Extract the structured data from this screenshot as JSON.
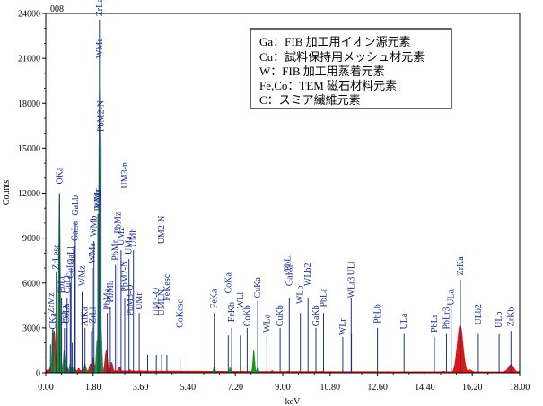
{
  "chart_data": {
    "type": "area",
    "title": "",
    "sample_label": "008",
    "xlabel": "keV",
    "ylabel": "Counts",
    "xlim": [
      0,
      18
    ],
    "ylim": [
      0,
      24000
    ],
    "xticks": [
      "0.00",
      "1.80",
      "3.60",
      "5.40",
      "7.20",
      "9.00",
      "10.80",
      "12.60",
      "14.40",
      "16.20",
      "18.00"
    ],
    "yticks": [
      "0",
      "3000",
      "6000",
      "9000",
      "12000",
      "15000",
      "18000",
      "21000",
      "24000"
    ],
    "grid": false,
    "annotation": [
      "Ga：FIB 加工用イオン源元素",
      "Cu：試料保持用メッシュ材元素",
      "W：FIB 加工用蒸着元素",
      "Fe,Co：TEM 磁石材料元素",
      "C：スミア繊維元素"
    ],
    "colors": {
      "spectrum_green": "#1a9a1a",
      "spectrum_red": "#e01515",
      "marker_blue": "#1f2f8a"
    },
    "series": [
      {
        "color": "green",
        "points": [
          [
            0.27,
            3000
          ],
          [
            0.52,
            12000
          ],
          [
            0.7,
            1500
          ],
          [
            0.93,
            600
          ],
          [
            1.01,
            400
          ],
          [
            1.1,
            500
          ],
          [
            1.49,
            600
          ],
          [
            1.78,
            700
          ],
          [
            1.95,
            2200
          ],
          [
            2.04,
            19000
          ],
          [
            2.1,
            3000
          ],
          [
            6.4,
            400
          ],
          [
            7.0,
            350
          ],
          [
            7.9,
            1500
          ],
          [
            8.05,
            350
          ]
        ]
      },
      {
        "color": "red",
        "points": [
          [
            0.1,
            200
          ],
          [
            0.2,
            500
          ],
          [
            0.32,
            2800
          ],
          [
            0.4,
            600
          ],
          [
            0.55,
            1200
          ],
          [
            0.8,
            400
          ],
          [
            1.25,
            300
          ],
          [
            1.5,
            400
          ],
          [
            1.7,
            600
          ],
          [
            1.8,
            1000
          ],
          [
            1.95,
            800
          ],
          [
            2.3,
            1500
          ],
          [
            2.5,
            700
          ],
          [
            2.8,
            400
          ],
          [
            3.2,
            200
          ],
          [
            3.6,
            150
          ],
          [
            4.5,
            100
          ],
          [
            6.4,
            150
          ],
          [
            7.5,
            120
          ],
          [
            8.6,
            150
          ],
          [
            9.2,
            120
          ],
          [
            10.5,
            100
          ],
          [
            13.0,
            80
          ],
          [
            15.1,
            100
          ],
          [
            15.74,
            3200
          ],
          [
            16.1,
            200
          ],
          [
            17.5,
            150
          ],
          [
            17.67,
            550
          ],
          [
            18.0,
            100
          ]
        ]
      }
    ],
    "peak_labels": [
      {
        "text": "CKa",
        "x": 0.27,
        "y": 2900
      },
      {
        "text": "ZrMz",
        "x": 0.2,
        "y": 4000
      },
      {
        "text": "ZrLesc",
        "x": 0.4,
        "y": 6900
      },
      {
        "text": "OKa",
        "x": 0.52,
        "y": 12600
      },
      {
        "text": "FeLa",
        "x": 0.71,
        "y": 3300
      },
      {
        "text": "CoLa",
        "x": 0.78,
        "y": 3300
      },
      {
        "text": "PbLr",
        "x": 0.6,
        "y": 5300
      },
      {
        "text": "CuLl",
        "x": 0.81,
        "y": 5300
      },
      {
        "text": "CuLa",
        "x": 0.93,
        "y": 6300
      },
      {
        "text": "GaLl",
        "x": 0.96,
        "y": 7200
      },
      {
        "text": "GaLa",
        "x": 1.1,
        "y": 8800
      },
      {
        "text": "GaLb",
        "x": 1.12,
        "y": 10500
      },
      {
        "text": "WMz",
        "x": 1.38,
        "y": 5800
      },
      {
        "text": "AlKa",
        "x": 1.49,
        "y": 3100
      },
      {
        "text": "ZrLl",
        "x": 1.79,
        "y": 3300
      },
      {
        "text": "WMa",
        "x": 1.77,
        "y": 7300
      },
      {
        "text": "WMb",
        "x": 1.83,
        "y": 9100
      },
      {
        "text": "WMr",
        "x": 1.98,
        "y": 11000
      },
      {
        "text": "PbMz",
        "x": 2.0,
        "y": 10800
      },
      {
        "text": "WMa",
        "x": 2.04,
        "y": 21000
      },
      {
        "text": "ZrLa",
        "x": 2.04,
        "y": 23800
      },
      {
        "text": "PbMa",
        "x": 2.34,
        "y": 4200
      },
      {
        "text": "PbMb",
        "x": 2.45,
        "y": 4700
      },
      {
        "text": "PbMr",
        "x": 2.65,
        "y": 7500
      },
      {
        "text": "PbMz",
        "x": 2.74,
        "y": 9300
      },
      {
        "text": "UMz",
        "x": 2.86,
        "y": 8500
      },
      {
        "text": "PbM2-N",
        "x": 3.0,
        "y": 5400
      },
      {
        "text": "UMa",
        "x": 3.16,
        "y": 7900
      },
      {
        "text": "UMb",
        "x": 3.33,
        "y": 8400
      },
      {
        "text": "PbM3-O",
        "x": 3.2,
        "y": 3800
      },
      {
        "text": "UMr",
        "x": 3.55,
        "y": 4200
      },
      {
        "text": "UM3-n",
        "x": 3.0,
        "y": 12300
      },
      {
        "text": "UM2-N",
        "x": 4.4,
        "y": 8600
      },
      {
        "text": "UM3-O",
        "x": 4.2,
        "y": 3800
      },
      {
        "text": "UMl-N",
        "x": 4.4,
        "y": 3800
      },
      {
        "text": "PbM2-N",
        "x": 2.1,
        "y": 16100
      },
      {
        "text": "FeKesc",
        "x": 4.6,
        "y": 4800
      },
      {
        "text": "CoKesc",
        "x": 5.1,
        "y": 3000
      },
      {
        "text": "FeKa",
        "x": 6.4,
        "y": 4300
      },
      {
        "text": "FeKb",
        "x": 7.06,
        "y": 3400
      },
      {
        "text": "CoKa",
        "x": 6.93,
        "y": 5300
      },
      {
        "text": "CoKb",
        "x": 7.65,
        "y": 3100
      },
      {
        "text": "WLl",
        "x": 7.39,
        "y": 4300
      },
      {
        "text": "CuKa",
        "x": 8.05,
        "y": 5000
      },
      {
        "text": "WLa",
        "x": 8.4,
        "y": 2700
      },
      {
        "text": "CuKb",
        "x": 8.9,
        "y": 3100
      },
      {
        "text": "GaKa",
        "x": 9.25,
        "y": 5800
      },
      {
        "text": "PbLl",
        "x": 9.18,
        "y": 6800
      },
      {
        "text": "WLb",
        "x": 9.67,
        "y": 4600
      },
      {
        "text": "WLb2",
        "x": 9.96,
        "y": 5800
      },
      {
        "text": "GaKb",
        "x": 10.26,
        "y": 3100
      },
      {
        "text": "PbLa",
        "x": 10.55,
        "y": 4400
      },
      {
        "text": "WLr",
        "x": 11.28,
        "y": 2500
      },
      {
        "text": "WLr3",
        "x": 11.6,
        "y": 5000
      },
      {
        "text": "ULl",
        "x": 11.61,
        "y": 6500
      },
      {
        "text": "PbLb",
        "x": 12.6,
        "y": 3300
      },
      {
        "text": "ULa",
        "x": 13.61,
        "y": 2900
      },
      {
        "text": "PbLr",
        "x": 14.76,
        "y": 2700
      },
      {
        "text": "PbLr3",
        "x": 15.22,
        "y": 2900
      },
      {
        "text": "ULa",
        "x": 15.4,
        "y": 4500
      },
      {
        "text": "ZrKa",
        "x": 15.75,
        "y": 6500
      },
      {
        "text": "ULb2",
        "x": 16.43,
        "y": 3200
      },
      {
        "text": "ULb",
        "x": 17.22,
        "y": 3000
      },
      {
        "text": "ZrKb",
        "x": 17.67,
        "y": 3100
      }
    ],
    "marker_lines": [
      [
        0.18,
        1900
      ],
      [
        0.27,
        2900
      ],
      [
        0.4,
        6700
      ],
      [
        0.52,
        12000
      ],
      [
        0.6,
        5000
      ],
      [
        0.71,
        3000
      ],
      [
        0.78,
        3000
      ],
      [
        0.81,
        5000
      ],
      [
        0.93,
        6000
      ],
      [
        0.96,
        7000
      ],
      [
        1.01,
        2000
      ],
      [
        1.1,
        8500
      ],
      [
        1.12,
        10000
      ],
      [
        1.38,
        5400
      ],
      [
        1.49,
        3000
      ],
      [
        1.74,
        2800
      ],
      [
        1.77,
        7000
      ],
      [
        1.78,
        3000
      ],
      [
        1.83,
        8800
      ],
      [
        1.98,
        10600
      ],
      [
        2.04,
        23600
      ],
      [
        2.1,
        15800
      ],
      [
        2.34,
        4000
      ],
      [
        2.45,
        4400
      ],
      [
        2.65,
        7200
      ],
      [
        2.74,
        9000
      ],
      [
        2.86,
        8200
      ],
      [
        3.0,
        5000
      ],
      [
        3.16,
        7600
      ],
      [
        3.33,
        8200
      ],
      [
        3.55,
        4000
      ],
      [
        3.87,
        1200
      ],
      [
        4.2,
        1200
      ],
      [
        4.4,
        1200
      ],
      [
        4.6,
        1200
      ],
      [
        5.1,
        1000
      ],
      [
        6.4,
        4000
      ],
      [
        6.93,
        2500
      ],
      [
        7.06,
        3000
      ],
      [
        7.39,
        2500
      ],
      [
        7.65,
        3000
      ],
      [
        8.05,
        4800
      ],
      [
        8.4,
        2500
      ],
      [
        8.9,
        3000
      ],
      [
        9.25,
        5000
      ],
      [
        9.67,
        4000
      ],
      [
        9.96,
        5000
      ],
      [
        10.26,
        3000
      ],
      [
        10.55,
        4000
      ],
      [
        11.28,
        2400
      ],
      [
        11.6,
        5000
      ],
      [
        11.61,
        2600
      ],
      [
        12.6,
        3000
      ],
      [
        13.61,
        2600
      ],
      [
        14.76,
        2400
      ],
      [
        15.22,
        2600
      ],
      [
        15.4,
        4400
      ],
      [
        15.75,
        6200
      ],
      [
        16.43,
        2600
      ],
      [
        17.22,
        2600
      ],
      [
        17.67,
        2800
      ]
    ]
  }
}
